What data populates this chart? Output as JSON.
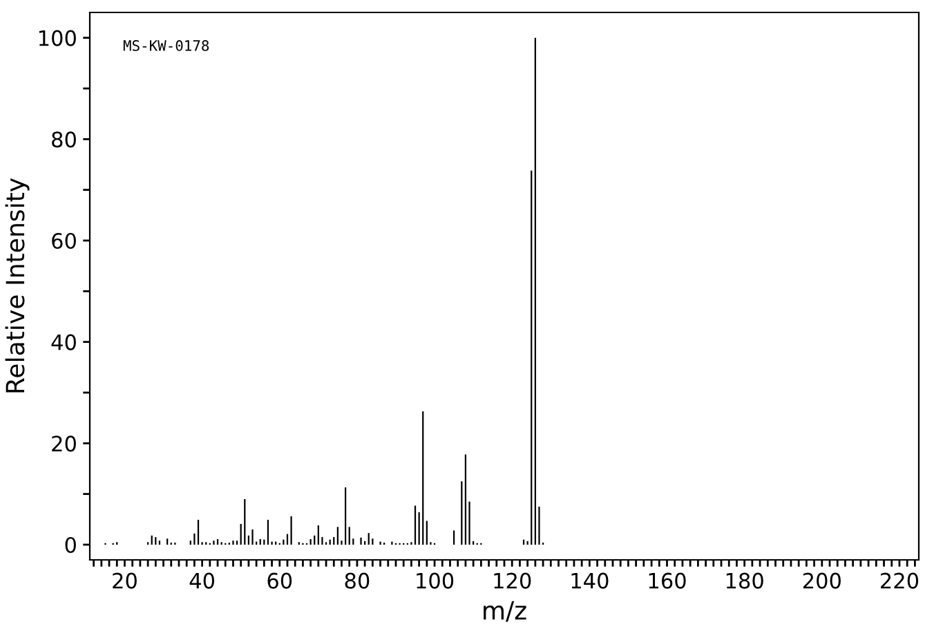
{
  "chart_data": {
    "type": "bar",
    "xlabel": "m/z",
    "ylabel": "Relative Intensity",
    "annotations": [
      "MS-KW-0178"
    ],
    "x": [
      15,
      17,
      18,
      26,
      27,
      28,
      29,
      31,
      32,
      33,
      37,
      38,
      39,
      40,
      41,
      42,
      43,
      44,
      45,
      46,
      47,
      48,
      49,
      50,
      51,
      52,
      53,
      54,
      55,
      56,
      57,
      58,
      59,
      60,
      61,
      62,
      63,
      65,
      66,
      67,
      68,
      69,
      70,
      71,
      72,
      73,
      74,
      75,
      76,
      77,
      78,
      79,
      81,
      82,
      83,
      84,
      86,
      87,
      89,
      90,
      91,
      92,
      93,
      94,
      95,
      96,
      97,
      98,
      99,
      100,
      105,
      107,
      108,
      109,
      110,
      111,
      112,
      123,
      124,
      125,
      126,
      127,
      128
    ],
    "values": [
      0.3,
      0.3,
      0.5,
      0.5,
      1.8,
      1.5,
      0.8,
      1.2,
      0.4,
      0.4,
      0.8,
      2.2,
      4.9,
      0.5,
      0.5,
      0.3,
      0.8,
      1.1,
      0.5,
      0.3,
      0.4,
      0.8,
      0.8,
      4.1,
      9.0,
      1.8,
      3.0,
      0.6,
      1.1,
      1.0,
      4.9,
      0.6,
      0.6,
      0.3,
      1.0,
      2.1,
      5.6,
      0.5,
      0.3,
      0.3,
      1.1,
      1.8,
      3.8,
      1.5,
      0.5,
      1.0,
      1.5,
      3.5,
      0.8,
      11.3,
      3.5,
      1.2,
      1.4,
      0.7,
      2.3,
      1.2,
      0.6,
      0.4,
      0.6,
      0.3,
      0.3,
      0.3,
      0.3,
      0.5,
      7.7,
      6.4,
      26.3,
      4.7,
      0.5,
      0.3,
      2.8,
      12.5,
      17.8,
      8.5,
      0.7,
      0.3,
      0.3,
      1.0,
      0.7,
      73.8,
      100,
      7.5,
      0.4
    ],
    "color": "#000000",
    "xlim": [
      11,
      225
    ],
    "ylim": [
      -3,
      105
    ],
    "xticks": [
      {
        "value": 12,
        "label": null
      },
      {
        "value": 14,
        "label": null
      },
      {
        "value": 16,
        "label": null
      },
      {
        "value": 18,
        "label": null
      },
      20,
      {
        "value": 22,
        "label": null
      },
      {
        "value": 24,
        "label": null
      },
      {
        "value": 26,
        "label": null
      },
      {
        "value": 28,
        "label": null
      },
      {
        "value": 30,
        "label": null
      },
      {
        "value": 32,
        "label": null
      },
      {
        "value": 34,
        "label": null
      },
      {
        "value": 36,
        "label": null
      },
      {
        "value": 38,
        "label": null
      },
      40,
      {
        "value": 42,
        "label": null
      },
      {
        "value": 44,
        "label": null
      },
      {
        "value": 46,
        "label": null
      },
      {
        "value": 48,
        "label": null
      },
      {
        "value": 50,
        "label": null
      },
      {
        "value": 52,
        "label": null
      },
      {
        "value": 54,
        "label": null
      },
      {
        "value": 56,
        "label": null
      },
      {
        "value": 58,
        "label": null
      },
      60,
      {
        "value": 62,
        "label": null
      },
      {
        "value": 64,
        "label": null
      },
      {
        "value": 66,
        "label": null
      },
      {
        "value": 68,
        "label": null
      },
      {
        "value": 70,
        "label": null
      },
      {
        "value": 72,
        "label": null
      },
      {
        "value": 74,
        "label": null
      },
      {
        "value": 76,
        "label": null
      },
      {
        "value": 78,
        "label": null
      },
      80,
      {
        "value": 82,
        "label": null
      },
      {
        "value": 84,
        "label": null
      },
      {
        "value": 86,
        "label": null
      },
      {
        "value": 88,
        "label": null
      },
      {
        "value": 90,
        "label": null
      },
      {
        "value": 92,
        "label": null
      },
      {
        "value": 94,
        "label": null
      },
      {
        "value": 96,
        "label": null
      },
      {
        "value": 98,
        "label": null
      },
      100,
      {
        "value": 102,
        "label": null
      },
      {
        "value": 104,
        "label": null
      },
      {
        "value": 106,
        "label": null
      },
      {
        "value": 108,
        "label": null
      },
      {
        "value": 110,
        "label": null
      },
      {
        "value": 112,
        "label": null
      },
      {
        "value": 114,
        "label": null
      },
      {
        "value": 116,
        "label": null
      },
      {
        "value": 118,
        "label": null
      },
      120,
      {
        "value": 122,
        "label": null
      },
      {
        "value": 124,
        "label": null
      },
      {
        "value": 126,
        "label": null
      },
      {
        "value": 128,
        "label": null
      },
      {
        "value": 130,
        "label": null
      },
      {
        "value": 132,
        "label": null
      },
      {
        "value": 134,
        "label": null
      },
      {
        "value": 136,
        "label": null
      },
      {
        "value": 138,
        "label": null
      },
      140,
      {
        "value": 142,
        "label": null
      },
      {
        "value": 144,
        "label": null
      },
      {
        "value": 146,
        "label": null
      },
      {
        "value": 148,
        "label": null
      },
      {
        "value": 150,
        "label": null
      },
      {
        "value": 152,
        "label": null
      },
      {
        "value": 154,
        "label": null
      },
      {
        "value": 156,
        "label": null
      },
      {
        "value": 158,
        "label": null
      },
      160,
      {
        "value": 162,
        "label": null
      },
      {
        "value": 164,
        "label": null
      },
      {
        "value": 166,
        "label": null
      },
      {
        "value": 168,
        "label": null
      },
      {
        "value": 170,
        "label": null
      },
      {
        "value": 172,
        "label": null
      },
      {
        "value": 174,
        "label": null
      },
      {
        "value": 176,
        "label": null
      },
      {
        "value": 178,
        "label": null
      },
      180,
      {
        "value": 182,
        "label": null
      },
      {
        "value": 184,
        "label": null
      },
      {
        "value": 186,
        "label": null
      },
      {
        "value": 188,
        "label": null
      },
      {
        "value": 190,
        "label": null
      },
      {
        "value": 192,
        "label": null
      },
      {
        "value": 194,
        "label": null
      },
      {
        "value": 196,
        "label": null
      },
      {
        "value": 198,
        "label": null
      },
      200,
      {
        "value": 202,
        "label": null
      },
      {
        "value": 204,
        "label": null
      },
      {
        "value": 206,
        "label": null
      },
      {
        "value": 208,
        "label": null
      },
      {
        "value": 210,
        "label": null
      },
      {
        "value": 212,
        "label": null
      },
      {
        "value": 214,
        "label": null
      },
      {
        "value": 216,
        "label": null
      },
      {
        "value": 218,
        "label": null
      },
      220,
      {
        "value": 222,
        "label": null
      },
      {
        "value": 224,
        "label": null
      }
    ],
    "yticks": [
      0,
      {
        "value": 10,
        "label": null
      },
      20,
      {
        "value": 30,
        "label": null
      },
      40,
      {
        "value": 50,
        "label": null
      },
      60,
      {
        "value": 70,
        "label": null
      },
      80,
      {
        "value": 90,
        "label": null
      },
      100
    ],
    "tick_labels": true
  }
}
